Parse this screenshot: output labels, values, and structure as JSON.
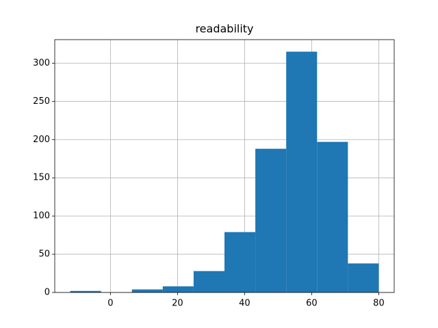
{
  "chart_data": {
    "type": "histogram",
    "title": "readability",
    "bins": [
      -12,
      -2.8,
      6.4,
      15.6,
      24.8,
      34,
      43.2,
      52.4,
      61.6,
      70.8,
      80
    ],
    "values": [
      2,
      0,
      4,
      8,
      28,
      79,
      188,
      315,
      197,
      38
    ],
    "color": "#1f77b4",
    "xlim": [
      -16.6,
      84.6
    ],
    "xticks": [
      0,
      20,
      40,
      60,
      80
    ],
    "ylim": [
      0,
      330.75
    ],
    "yticks": [
      0,
      50,
      100,
      150,
      200,
      250,
      300
    ],
    "grid": true
  }
}
